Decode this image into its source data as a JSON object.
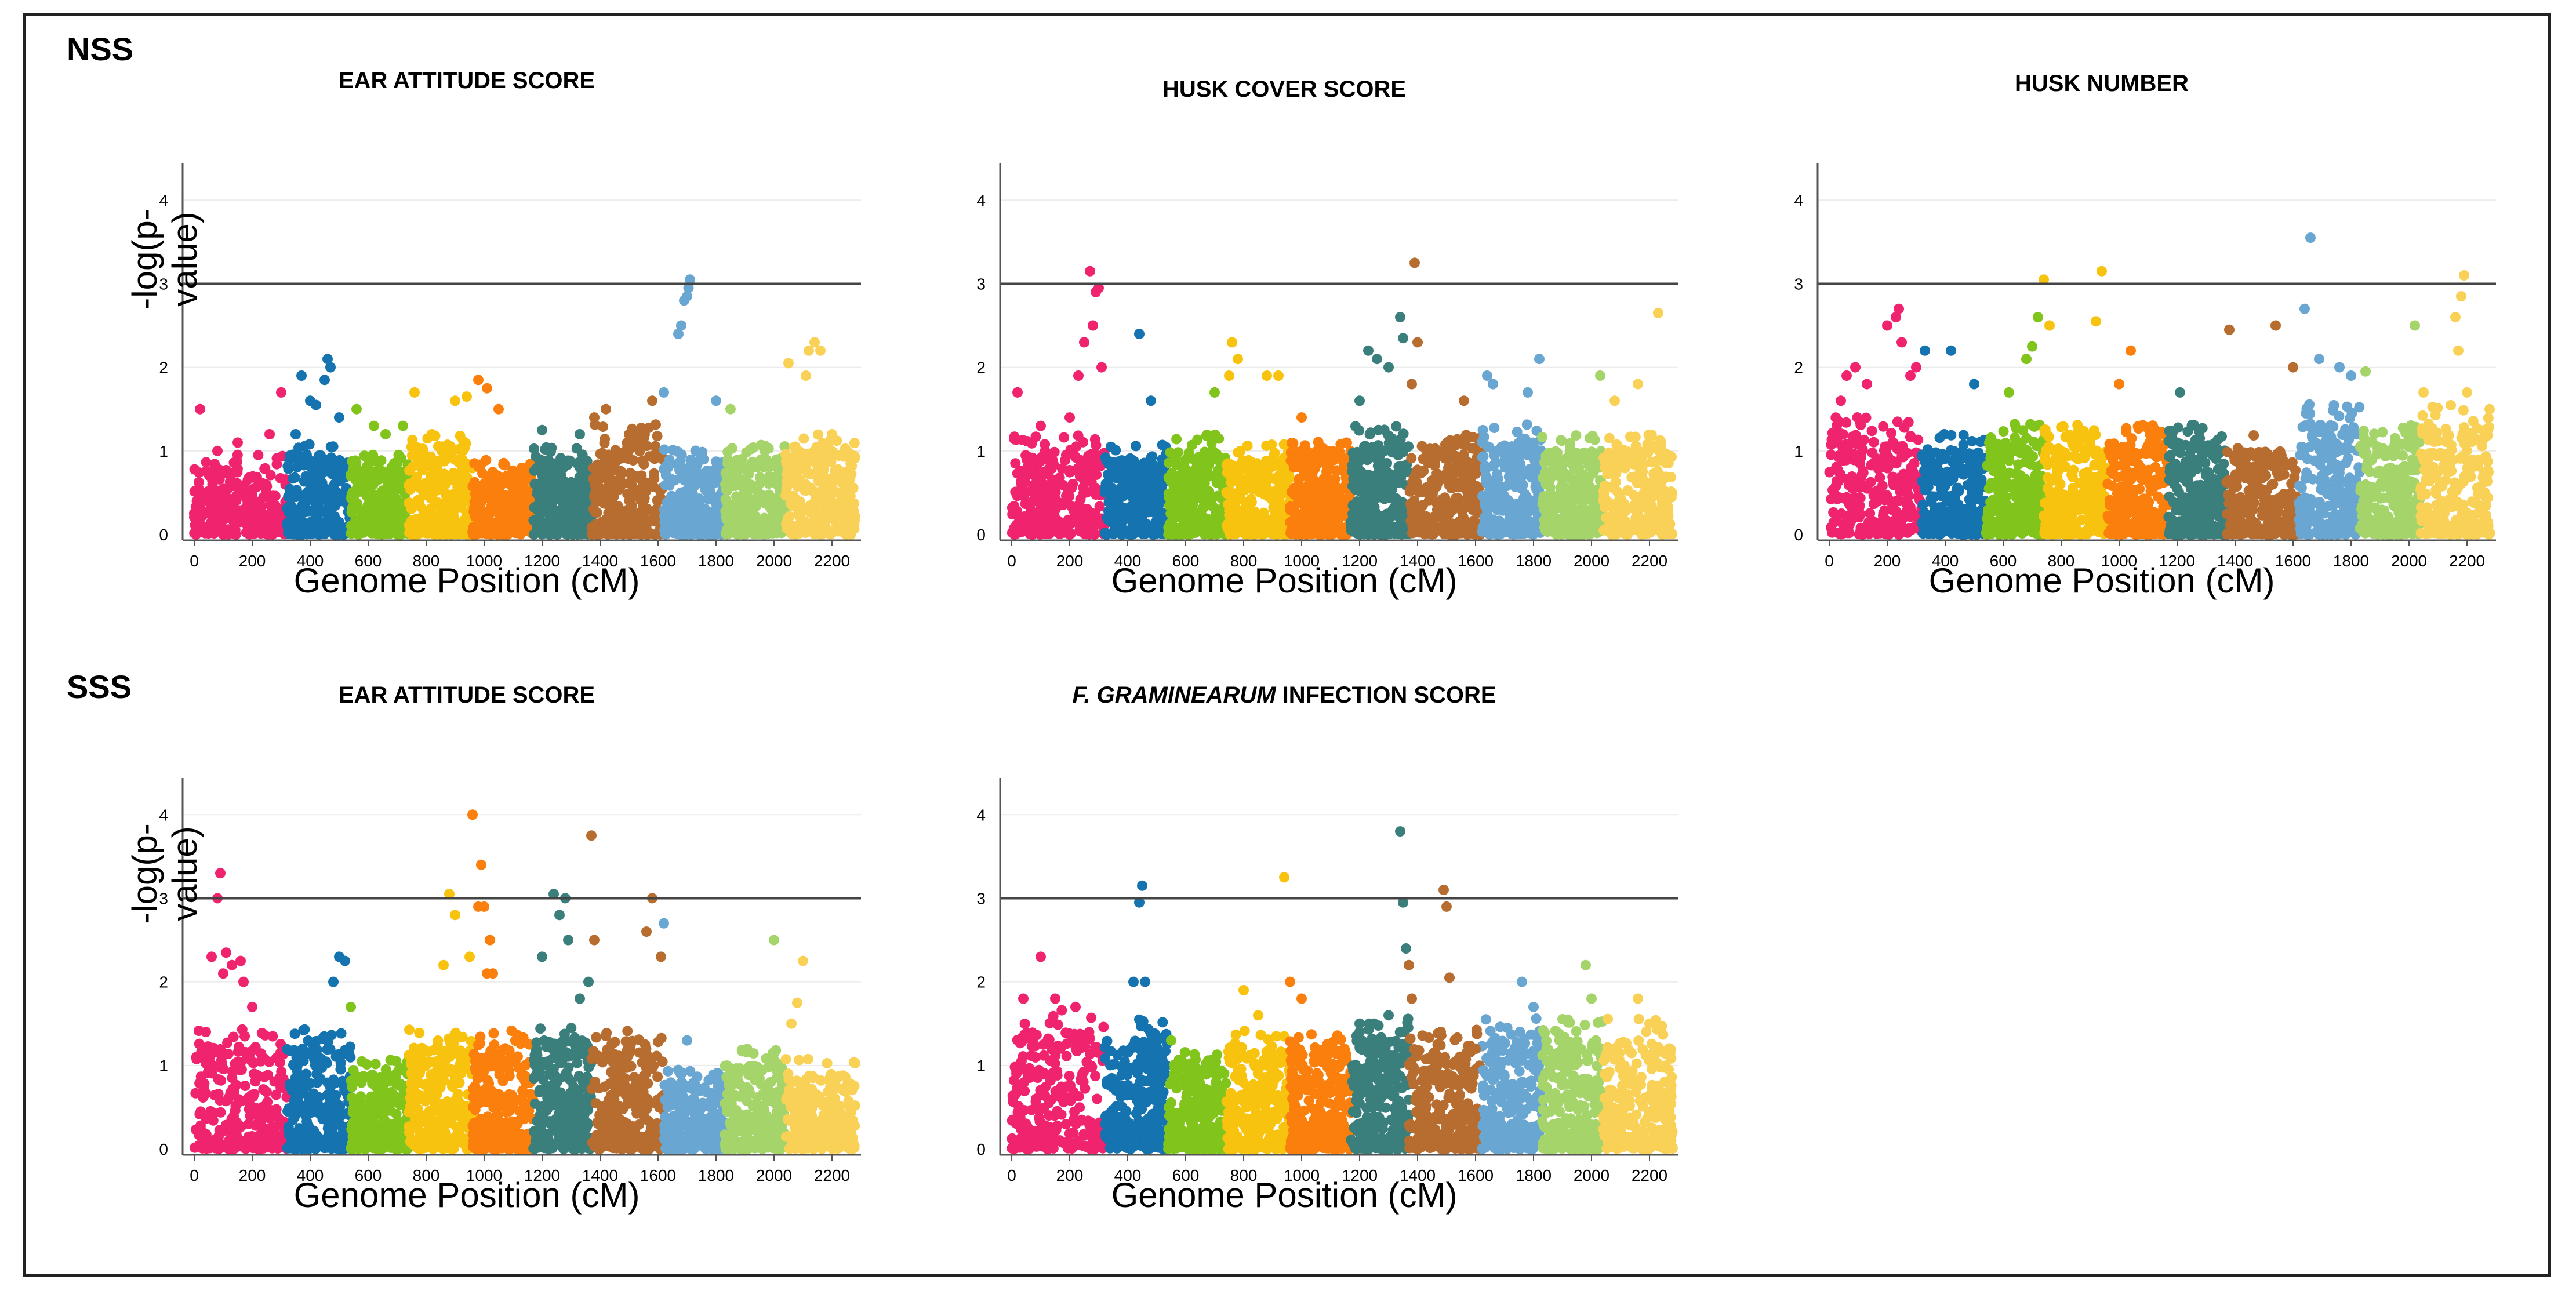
{
  "figure": {
    "sections": [
      "NSS",
      "SSS"
    ],
    "chromosome_colors": [
      "#f0246e",
      "#1574b0",
      "#80c41c",
      "#f8c30e",
      "#fb7f0c",
      "#3b7f7d",
      "#b86d30",
      "#6aa6d2",
      "#a5d56a",
      "#f8d156"
    ]
  },
  "chart_data": [
    {
      "type": "scatter",
      "section": "NSS",
      "title": "EAR ATTITUDE SCORE",
      "xlabel": "Genome Position (cM)",
      "ylabel": "-log(p-value)",
      "xlim": [
        -40,
        2300
      ],
      "ylim": [
        0,
        4.3
      ],
      "xticks": [
        0,
        200,
        400,
        600,
        800,
        1000,
        1200,
        1400,
        1600,
        1800,
        2000,
        2200
      ],
      "yticks": [
        0,
        1,
        2,
        3,
        4
      ],
      "threshold": 3,
      "background_max": [
        0.8,
        0.9,
        0.8,
        1.0,
        0.75,
        0.9,
        1.1,
        0.85,
        0.9,
        1.0
      ],
      "peaks": [
        [
          20,
          1.5
        ],
        [
          80,
          1.0
        ],
        [
          150,
          1.1
        ],
        [
          260,
          1.2
        ],
        [
          300,
          1.7
        ],
        [
          350,
          1.2
        ],
        [
          370,
          1.9
        ],
        [
          400,
          1.6
        ],
        [
          420,
          1.55
        ],
        [
          460,
          2.1
        ],
        [
          470,
          2.0
        ],
        [
          450,
          1.85
        ],
        [
          500,
          1.4
        ],
        [
          560,
          1.5
        ],
        [
          620,
          1.3
        ],
        [
          660,
          1.2
        ],
        [
          720,
          1.3
        ],
        [
          760,
          1.7
        ],
        [
          820,
          1.2
        ],
        [
          900,
          1.6
        ],
        [
          940,
          1.65
        ],
        [
          980,
          1.85
        ],
        [
          1010,
          1.75
        ],
        [
          1050,
          1.5
        ],
        [
          1200,
          1.25
        ],
        [
          1330,
          1.2
        ],
        [
          1380,
          1.4
        ],
        [
          1420,
          1.5
        ],
        [
          1500,
          1.2
        ],
        [
          1580,
          1.6
        ],
        [
          1620,
          1.7
        ],
        [
          1670,
          2.4
        ],
        [
          1680,
          2.5
        ],
        [
          1690,
          2.8
        ],
        [
          1700,
          2.85
        ],
        [
          1705,
          2.95
        ],
        [
          1710,
          3.05
        ],
        [
          1800,
          1.6
        ],
        [
          1850,
          1.5
        ],
        [
          2050,
          2.05
        ],
        [
          2120,
          2.2
        ],
        [
          2140,
          2.3
        ],
        [
          2160,
          2.2
        ],
        [
          2110,
          1.9
        ],
        [
          2200,
          1.2
        ]
      ]
    },
    {
      "type": "scatter",
      "section": "NSS",
      "title": "HUSK COVER SCORE",
      "xlabel": "Genome Position (cM)",
      "ylabel": "",
      "xlim": [
        -40,
        2300
      ],
      "ylim": [
        0,
        4.3
      ],
      "xticks": [
        0,
        200,
        400,
        600,
        800,
        1000,
        1200,
        1400,
        1600,
        1800,
        2000,
        2200
      ],
      "yticks": [
        0,
        1,
        2,
        3,
        4
      ],
      "threshold": 3,
      "background_max": [
        1.0,
        0.9,
        1.0,
        0.9,
        1.0,
        1.1,
        1.0,
        1.1,
        1.0,
        1.0
      ],
      "peaks": [
        [
          20,
          1.7
        ],
        [
          100,
          1.3
        ],
        [
          200,
          1.4
        ],
        [
          230,
          1.9
        ],
        [
          250,
          2.3
        ],
        [
          270,
          3.15
        ],
        [
          280,
          2.5
        ],
        [
          290,
          2.9
        ],
        [
          300,
          2.95
        ],
        [
          310,
          2.0
        ],
        [
          440,
          2.4
        ],
        [
          480,
          1.6
        ],
        [
          700,
          1.7
        ],
        [
          750,
          1.9
        ],
        [
          760,
          2.3
        ],
        [
          780,
          2.1
        ],
        [
          880,
          1.9
        ],
        [
          920,
          1.9
        ],
        [
          1000,
          1.4
        ],
        [
          1200,
          1.6
        ],
        [
          1230,
          2.2
        ],
        [
          1260,
          2.1
        ],
        [
          1300,
          2.0
        ],
        [
          1340,
          2.6
        ],
        [
          1350,
          2.35
        ],
        [
          1390,
          3.25
        ],
        [
          1400,
          2.3
        ],
        [
          1380,
          1.8
        ],
        [
          1560,
          1.6
        ],
        [
          1640,
          1.9
        ],
        [
          1660,
          1.8
        ],
        [
          1780,
          1.7
        ],
        [
          1820,
          2.1
        ],
        [
          2030,
          1.9
        ],
        [
          2080,
          1.6
        ],
        [
          2160,
          1.8
        ],
        [
          2230,
          2.65
        ]
      ]
    },
    {
      "type": "scatter",
      "section": "NSS",
      "title": "HUSK NUMBER",
      "xlabel": "Genome Position (cM)",
      "ylabel": "",
      "xlim": [
        -40,
        2300
      ],
      "ylim": [
        0,
        4.3
      ],
      "xticks": [
        0,
        200,
        400,
        600,
        800,
        1000,
        1200,
        1400,
        1600,
        1800,
        2000,
        2200
      ],
      "yticks": [
        0,
        1,
        2,
        3,
        4
      ],
      "threshold": 3,
      "background_max": [
        1.2,
        1.0,
        1.1,
        1.1,
        1.1,
        1.1,
        1.0,
        1.3,
        1.1,
        1.3
      ],
      "peaks": [
        [
          40,
          1.6
        ],
        [
          60,
          1.9
        ],
        [
          90,
          2.0
        ],
        [
          130,
          1.8
        ],
        [
          200,
          2.5
        ],
        [
          230,
          2.6
        ],
        [
          240,
          2.7
        ],
        [
          250,
          2.3
        ],
        [
          280,
          1.9
        ],
        [
          300,
          2.0
        ],
        [
          330,
          2.2
        ],
        [
          420,
          2.2
        ],
        [
          500,
          1.8
        ],
        [
          620,
          1.7
        ],
        [
          680,
          2.1
        ],
        [
          700,
          2.25
        ],
        [
          720,
          2.6
        ],
        [
          740,
          3.05
        ],
        [
          760,
          2.5
        ],
        [
          920,
          2.55
        ],
        [
          940,
          3.15
        ],
        [
          1000,
          1.8
        ],
        [
          1040,
          2.2
        ],
        [
          1210,
          1.7
        ],
        [
          1380,
          2.45
        ],
        [
          1540,
          2.5
        ],
        [
          1600,
          2.0
        ],
        [
          1640,
          2.7
        ],
        [
          1660,
          3.55
        ],
        [
          1690,
          2.1
        ],
        [
          1760,
          2.0
        ],
        [
          1800,
          1.9
        ],
        [
          1850,
          1.95
        ],
        [
          2020,
          2.5
        ],
        [
          2050,
          1.7
        ],
        [
          2160,
          2.6
        ],
        [
          2180,
          2.85
        ],
        [
          2190,
          3.1
        ],
        [
          2170,
          2.2
        ],
        [
          2200,
          1.7
        ]
      ]
    },
    {
      "type": "scatter",
      "section": "SSS",
      "title": "EAR ATTITUDE SCORE",
      "xlabel": "Genome Position (cM)",
      "ylabel": "-log(p-value)",
      "xlim": [
        -40,
        2300
      ],
      "ylim": [
        0,
        4.3
      ],
      "xticks": [
        0,
        200,
        400,
        600,
        800,
        1000,
        1200,
        1400,
        1600,
        1800,
        2000,
        2200
      ],
      "yticks": [
        0,
        1,
        2,
        3,
        4
      ],
      "threshold": 3,
      "background_max": [
        1.2,
        1.2,
        0.9,
        1.2,
        1.2,
        1.3,
        1.2,
        0.8,
        1.0,
        0.9
      ],
      "peaks": [
        [
          40,
          1.4
        ],
        [
          60,
          2.3
        ],
        [
          80,
          3.0
        ],
        [
          90,
          3.3
        ],
        [
          100,
          2.1
        ],
        [
          110,
          2.35
        ],
        [
          130,
          2.2
        ],
        [
          160,
          2.25
        ],
        [
          170,
          2.0
        ],
        [
          200,
          1.7
        ],
        [
          480,
          2.0
        ],
        [
          500,
          2.3
        ],
        [
          520,
          2.25
        ],
        [
          540,
          1.7
        ],
        [
          860,
          2.2
        ],
        [
          880,
          3.05
        ],
        [
          900,
          2.8
        ],
        [
          950,
          2.3
        ],
        [
          960,
          4.0
        ],
        [
          980,
          2.9
        ],
        [
          990,
          3.4
        ],
        [
          1000,
          2.9
        ],
        [
          1010,
          2.1
        ],
        [
          1020,
          2.5
        ],
        [
          1030,
          2.1
        ],
        [
          1240,
          3.05
        ],
        [
          1260,
          2.8
        ],
        [
          1280,
          3.0
        ],
        [
          1290,
          2.5
        ],
        [
          1200,
          2.3
        ],
        [
          1330,
          1.8
        ],
        [
          1370,
          3.75
        ],
        [
          1380,
          2.5
        ],
        [
          1360,
          2.0
        ],
        [
          1560,
          2.6
        ],
        [
          1580,
          3.0
        ],
        [
          1610,
          2.3
        ],
        [
          1620,
          2.7
        ],
        [
          1700,
          1.3
        ],
        [
          2000,
          2.5
        ],
        [
          2080,
          1.75
        ],
        [
          2100,
          2.25
        ],
        [
          2060,
          1.5
        ]
      ]
    },
    {
      "type": "scatter",
      "section": "SSS",
      "title_em": "F. GRAMINEARUM",
      "title": "INFECTION SCORE",
      "xlabel": "Genome Position (cM)",
      "ylabel": "",
      "xlim": [
        -40,
        2300
      ],
      "ylim": [
        0,
        4.3
      ],
      "xticks": [
        0,
        200,
        400,
        600,
        800,
        1000,
        1200,
        1400,
        1600,
        1800,
        2000,
        2200
      ],
      "yticks": [
        0,
        1,
        2,
        3,
        4
      ],
      "threshold": 3,
      "background_max": [
        1.4,
        1.3,
        1.0,
        1.2,
        1.2,
        1.3,
        1.2,
        1.3,
        1.3,
        1.3
      ],
      "peaks": [
        [
          40,
          1.8
        ],
        [
          100,
          2.3
        ],
        [
          150,
          1.8
        ],
        [
          220,
          1.7
        ],
        [
          420,
          2.0
        ],
        [
          440,
          2.95
        ],
        [
          450,
          3.15
        ],
        [
          460,
          2.0
        ],
        [
          550,
          1.3
        ],
        [
          800,
          1.9
        ],
        [
          850,
          1.6
        ],
        [
          940,
          3.25
        ],
        [
          960,
          2.0
        ],
        [
          1000,
          1.8
        ],
        [
          1200,
          1.5
        ],
        [
          1250,
          1.5
        ],
        [
          1300,
          1.6
        ],
        [
          1340,
          3.8
        ],
        [
          1350,
          2.95
        ],
        [
          1360,
          2.4
        ],
        [
          1370,
          2.2
        ],
        [
          1380,
          1.8
        ],
        [
          1490,
          3.1
        ],
        [
          1500,
          2.9
        ],
        [
          1510,
          2.05
        ],
        [
          1480,
          1.4
        ],
        [
          1600,
          1.2
        ],
        [
          1760,
          2.0
        ],
        [
          1800,
          1.7
        ],
        [
          1980,
          2.2
        ],
        [
          2000,
          1.8
        ],
        [
          2160,
          1.8
        ],
        [
          2200,
          1.5
        ]
      ]
    }
  ]
}
